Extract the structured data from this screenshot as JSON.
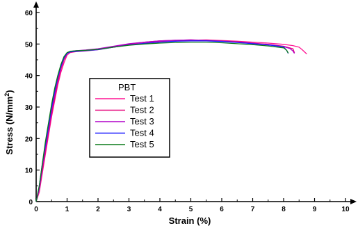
{
  "chart_data": {
    "type": "line",
    "xlabel": "Strain (%)",
    "ylabel": "Stress (N/mm",
    "ylabel_sup": "2",
    "ylabel_close": ")",
    "xlim": [
      0,
      10
    ],
    "ylim": [
      0,
      60
    ],
    "x_ticks": [
      0,
      1,
      2,
      3,
      4,
      5,
      6,
      7,
      8,
      9,
      10
    ],
    "y_ticks": [
      0,
      10,
      20,
      30,
      40,
      50,
      60
    ],
    "grid": false,
    "legend_title": "PBT",
    "legend_position": "center-left",
    "series": [
      {
        "name": "Test 1",
        "color": "#ff1493",
        "x": [
          0,
          0.1,
          0.2,
          0.3,
          0.4,
          0.5,
          0.6,
          0.7,
          0.8,
          0.9,
          1.0,
          1.1,
          1.3,
          1.6,
          2.0,
          2.5,
          3.0,
          3.5,
          4.0,
          4.5,
          5.0,
          5.5,
          6.0,
          6.5,
          7.0,
          7.5,
          8.0,
          8.3,
          8.5,
          8.6,
          8.7,
          8.75
        ],
        "y": [
          0,
          3,
          9,
          15,
          21,
          27,
          32,
          37,
          41,
          44,
          46.5,
          47.3,
          47.6,
          47.8,
          48.2,
          49.0,
          49.8,
          50.3,
          50.8,
          51.0,
          51.2,
          51.3,
          51.1,
          50.9,
          50.6,
          50.3,
          49.9,
          49.5,
          49.0,
          48.2,
          47.3,
          46.8
        ]
      },
      {
        "name": "Test 2",
        "color": "#e6007a",
        "x": [
          0,
          0.1,
          0.2,
          0.3,
          0.4,
          0.5,
          0.6,
          0.7,
          0.8,
          0.9,
          1.0,
          1.1,
          1.3,
          1.6,
          2.0,
          2.5,
          3.0,
          3.5,
          4.0,
          4.5,
          5.0,
          5.5,
          6.0,
          6.5,
          7.0,
          7.5,
          8.0,
          8.3,
          8.35
        ],
        "y": [
          0,
          4,
          10,
          16,
          22,
          28,
          33,
          38,
          42,
          45,
          47.0,
          47.5,
          47.8,
          48.0,
          48.4,
          49.2,
          50.0,
          50.6,
          51.0,
          51.2,
          51.3,
          51.2,
          51.0,
          50.7,
          50.3,
          49.9,
          49.3,
          48.5,
          47.2
        ]
      },
      {
        "name": "Test 3",
        "color": "#b000c8",
        "x": [
          0,
          0.1,
          0.2,
          0.3,
          0.4,
          0.5,
          0.6,
          0.7,
          0.8,
          0.9,
          1.0,
          1.1,
          1.3,
          1.6,
          2.0,
          2.5,
          3.0,
          3.5,
          4.0,
          4.5,
          5.0,
          5.5,
          6.0,
          6.5,
          7.0,
          7.5,
          8.0,
          8.2,
          8.3,
          8.35
        ],
        "y": [
          0,
          4,
          11,
          17,
          23,
          29,
          34,
          39,
          42.5,
          45.5,
          47.2,
          47.6,
          47.9,
          48.1,
          48.5,
          49.3,
          50.1,
          50.6,
          51.0,
          51.2,
          51.3,
          51.1,
          50.9,
          50.6,
          50.2,
          49.8,
          49.2,
          48.6,
          47.8,
          47.0
        ]
      },
      {
        "name": "Test 4",
        "color": "#1a1aff",
        "x": [
          0,
          0.1,
          0.2,
          0.3,
          0.4,
          0.5,
          0.6,
          0.7,
          0.8,
          0.9,
          1.0,
          1.1,
          1.3,
          1.6,
          2.0,
          2.5,
          3.0,
          3.5,
          4.0,
          4.5,
          5.0,
          5.5,
          6.0,
          6.5,
          7.0,
          7.5,
          8.0,
          8.1,
          8.15
        ],
        "y": [
          0,
          5,
          12,
          18,
          24,
          30,
          35,
          39.5,
          43,
          45.5,
          47.0,
          47.5,
          47.7,
          47.9,
          48.2,
          49.0,
          49.7,
          50.2,
          50.6,
          50.9,
          51.0,
          51.0,
          50.8,
          50.5,
          50.1,
          49.7,
          49.1,
          48.0,
          47.0
        ]
      },
      {
        "name": "Test 5",
        "color": "#0a7a1a",
        "x": [
          0,
          0.1,
          0.2,
          0.3,
          0.4,
          0.5,
          0.6,
          0.7,
          0.8,
          0.9,
          1.0,
          1.1,
          1.3,
          1.6,
          2.0,
          2.5,
          3.0,
          3.5,
          4.0,
          4.5,
          5.0,
          5.5,
          6.0,
          6.5,
          7.0,
          7.5,
          8.0,
          8.1,
          8.15
        ],
        "y": [
          0,
          5,
          12,
          19,
          25,
          31,
          36,
          40,
          43.5,
          46,
          47.3,
          47.7,
          47.9,
          48.0,
          48.3,
          49.0,
          49.6,
          50.0,
          50.3,
          50.5,
          50.6,
          50.6,
          50.4,
          50.1,
          49.8,
          49.4,
          48.8,
          48.0,
          47.1
        ]
      }
    ]
  }
}
